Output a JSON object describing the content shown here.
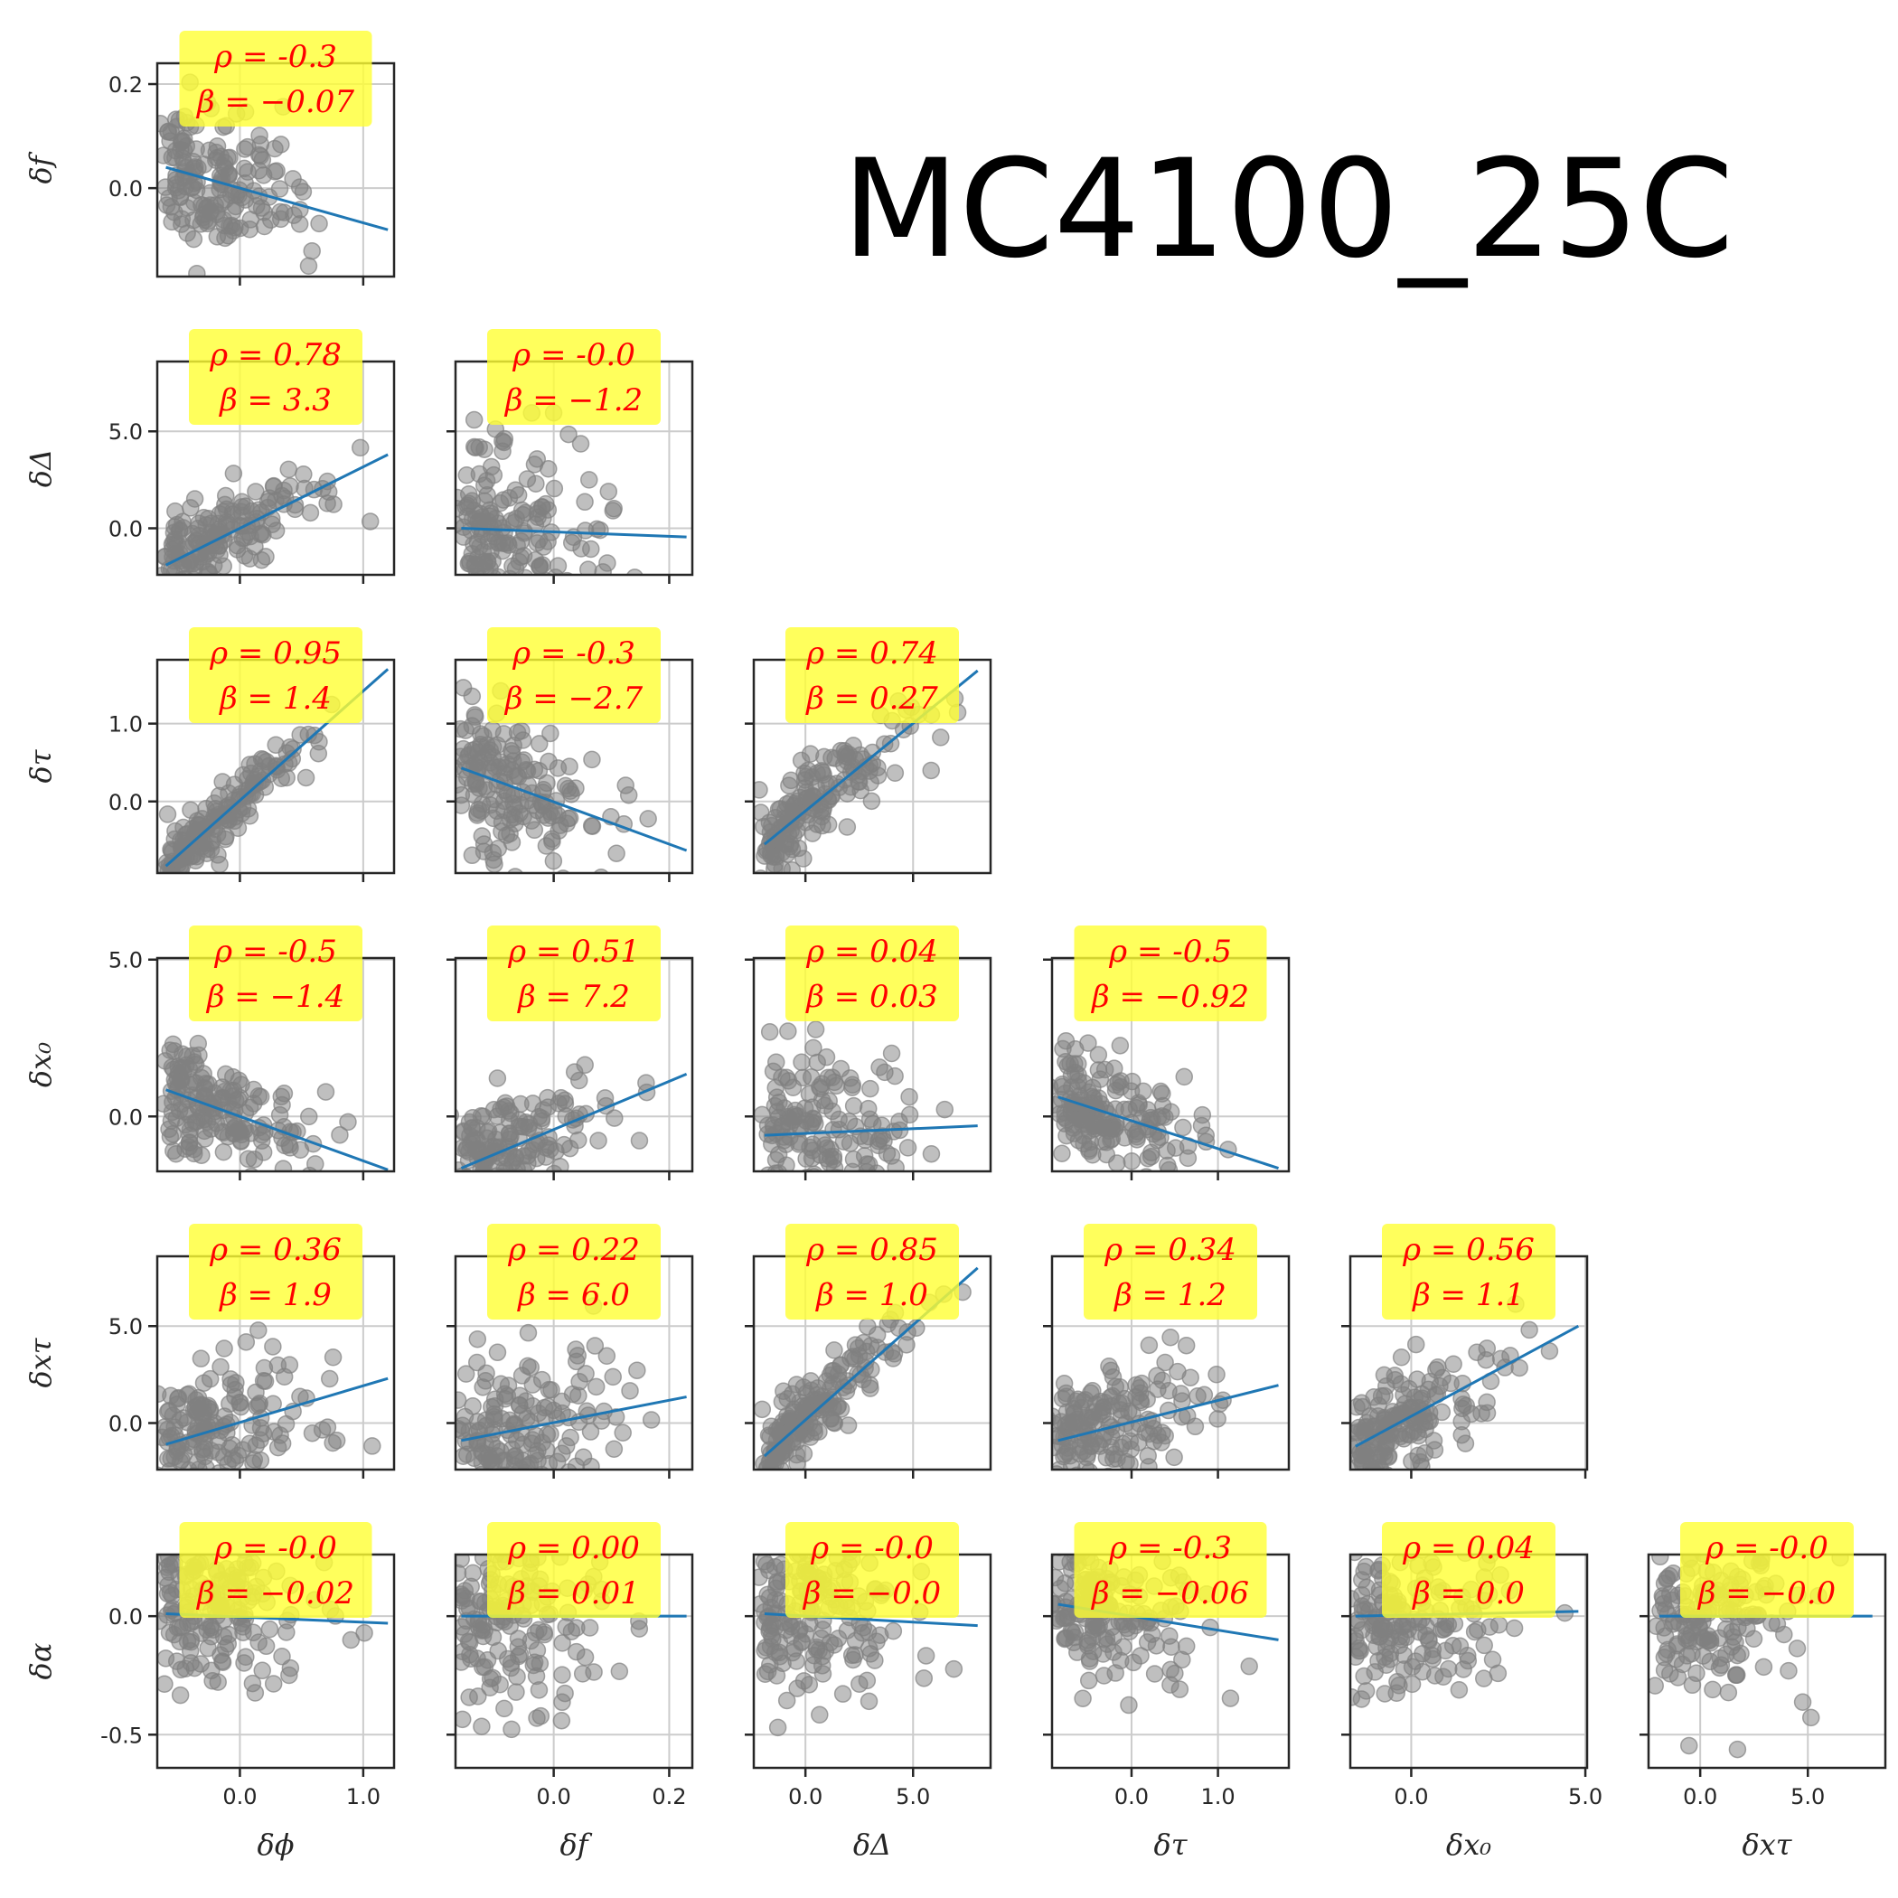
{
  "figure": {
    "title": "MC4100_25C"
  },
  "colors": {
    "scatter": "#808080",
    "fit": "#1f77b4",
    "annotation_bg": "#ffff33",
    "annotation_text": "#ff0000",
    "grid": "#cccccc"
  },
  "chart_data": {
    "type": "scatter",
    "grid": true,
    "variables": [
      {
        "key": "phi",
        "label": "δϕ",
        "lim": [
          -0.67,
          1.25
        ],
        "ticks": [
          0.0,
          1.0
        ],
        "tick_labels": [
          "0.0",
          "1.0"
        ]
      },
      {
        "key": "f",
        "label": "δf",
        "lim": [
          -0.17,
          0.24
        ],
        "ticks": [
          0.0,
          0.2
        ],
        "tick_labels": [
          "0.0",
          "0.2"
        ]
      },
      {
        "key": "Delta",
        "label": "δΔ",
        "lim": [
          -2.4,
          8.6
        ],
        "ticks": [
          0.0,
          5.0
        ],
        "tick_labels": [
          "0.0",
          "5.0"
        ]
      },
      {
        "key": "tau",
        "label": "δτ",
        "lim": [
          -0.92,
          1.82
        ],
        "ticks": [
          0.0,
          1.0
        ],
        "tick_labels": [
          "0.0",
          "1.0"
        ]
      },
      {
        "key": "x0",
        "label": "δx₀",
        "lim": [
          -1.75,
          5.05
        ],
        "ticks": [
          0.0,
          5.0
        ],
        "tick_labels": [
          "0.0",
          "5.0"
        ]
      },
      {
        "key": "xtau",
        "label": "δxτ",
        "lim": [
          -2.4,
          8.6
        ],
        "ticks": [
          0.0,
          5.0
        ],
        "tick_labels": [
          "0.0",
          "5.0"
        ]
      },
      {
        "key": "alpha",
        "label": "δα",
        "lim": [
          -0.64,
          0.26
        ],
        "ticks": [
          0.0,
          -0.5
        ],
        "tick_labels": [
          "0.0",
          "-0.5"
        ]
      }
    ],
    "panels": [
      {
        "x": "phi",
        "y": "f",
        "rho": "-0.3",
        "beta": "−0.07",
        "fit": [
          [
            -0.6,
            0.04
          ],
          [
            1.2,
            -0.08
          ]
        ]
      },
      {
        "x": "phi",
        "y": "Delta",
        "rho": "0.78",
        "beta": "3.3",
        "fit": [
          [
            -0.6,
            -1.9
          ],
          [
            1.2,
            3.8
          ]
        ]
      },
      {
        "x": "f",
        "y": "Delta",
        "rho": "-0.0",
        "beta": "−1.2",
        "fit": [
          [
            -0.16,
            0.0
          ],
          [
            0.23,
            -0.45
          ]
        ]
      },
      {
        "x": "phi",
        "y": "tau",
        "rho": "0.95",
        "beta": "1.4",
        "fit": [
          [
            -0.6,
            -0.83
          ],
          [
            1.2,
            1.7
          ]
        ]
      },
      {
        "x": "f",
        "y": "tau",
        "rho": "-0.3",
        "beta": "−2.7",
        "fit": [
          [
            -0.16,
            0.43
          ],
          [
            0.23,
            -0.63
          ]
        ]
      },
      {
        "x": "Delta",
        "y": "tau",
        "rho": "0.74",
        "beta": "0.27",
        "fit": [
          [
            -1.9,
            -0.55
          ],
          [
            8.0,
            1.68
          ]
        ]
      },
      {
        "x": "phi",
        "y": "x0",
        "rho": "-0.5",
        "beta": "−1.4",
        "fit": [
          [
            -0.6,
            0.85
          ],
          [
            1.2,
            -1.7
          ]
        ]
      },
      {
        "x": "f",
        "y": "x0",
        "rho": "0.51",
        "beta": "7.2",
        "fit": [
          [
            -0.16,
            -1.65
          ],
          [
            0.23,
            1.35
          ]
        ]
      },
      {
        "x": "Delta",
        "y": "x0",
        "rho": "0.04",
        "beta": "0.03",
        "fit": [
          [
            -1.9,
            -0.6
          ],
          [
            8.0,
            -0.3
          ]
        ]
      },
      {
        "x": "tau",
        "y": "x0",
        "rho": "-0.5",
        "beta": "−0.92",
        "fit": [
          [
            -0.85,
            0.62
          ],
          [
            1.7,
            -1.65
          ]
        ]
      },
      {
        "x": "phi",
        "y": "xtau",
        "rho": "0.36",
        "beta": "1.9",
        "fit": [
          [
            -0.6,
            -1.1
          ],
          [
            1.2,
            2.3
          ]
        ]
      },
      {
        "x": "f",
        "y": "xtau",
        "rho": "0.22",
        "beta": "6.0",
        "fit": [
          [
            -0.16,
            -0.9
          ],
          [
            0.23,
            1.35
          ]
        ]
      },
      {
        "x": "Delta",
        "y": "xtau",
        "rho": "0.85",
        "beta": "1.0",
        "fit": [
          [
            -1.9,
            -1.7
          ],
          [
            8.0,
            8.0
          ]
        ]
      },
      {
        "x": "tau",
        "y": "xtau",
        "rho": "0.34",
        "beta": "1.2",
        "fit": [
          [
            -0.85,
            -0.9
          ],
          [
            1.7,
            1.95
          ]
        ]
      },
      {
        "x": "x0",
        "y": "xtau",
        "rho": "0.56",
        "beta": "1.1",
        "fit": [
          [
            -1.6,
            -1.2
          ],
          [
            4.8,
            5.0
          ]
        ]
      },
      {
        "x": "phi",
        "y": "alpha",
        "rho": "-0.0",
        "beta": "−0.02",
        "fit": [
          [
            -0.6,
            0.01
          ],
          [
            1.2,
            -0.03
          ]
        ]
      },
      {
        "x": "f",
        "y": "alpha",
        "rho": "0.00",
        "beta": "0.01",
        "fit": [
          [
            -0.16,
            0.0
          ],
          [
            0.23,
            0.0
          ]
        ]
      },
      {
        "x": "Delta",
        "y": "alpha",
        "rho": "-0.0",
        "beta": "−0.0",
        "fit": [
          [
            -1.9,
            0.01
          ],
          [
            8.0,
            -0.04
          ]
        ]
      },
      {
        "x": "tau",
        "y": "alpha",
        "rho": "-0.3",
        "beta": "−0.06",
        "fit": [
          [
            -0.85,
            0.05
          ],
          [
            1.7,
            -0.1
          ]
        ]
      },
      {
        "x": "x0",
        "y": "alpha",
        "rho": "0.04",
        "beta": "0.0",
        "fit": [
          [
            -1.6,
            0.0
          ],
          [
            4.8,
            0.02
          ]
        ]
      },
      {
        "x": "xtau",
        "y": "alpha",
        "rho": "-0.0",
        "beta": "−0.0",
        "fit": [
          [
            -1.9,
            0.0
          ],
          [
            8.0,
            0.0
          ]
        ]
      }
    ]
  }
}
